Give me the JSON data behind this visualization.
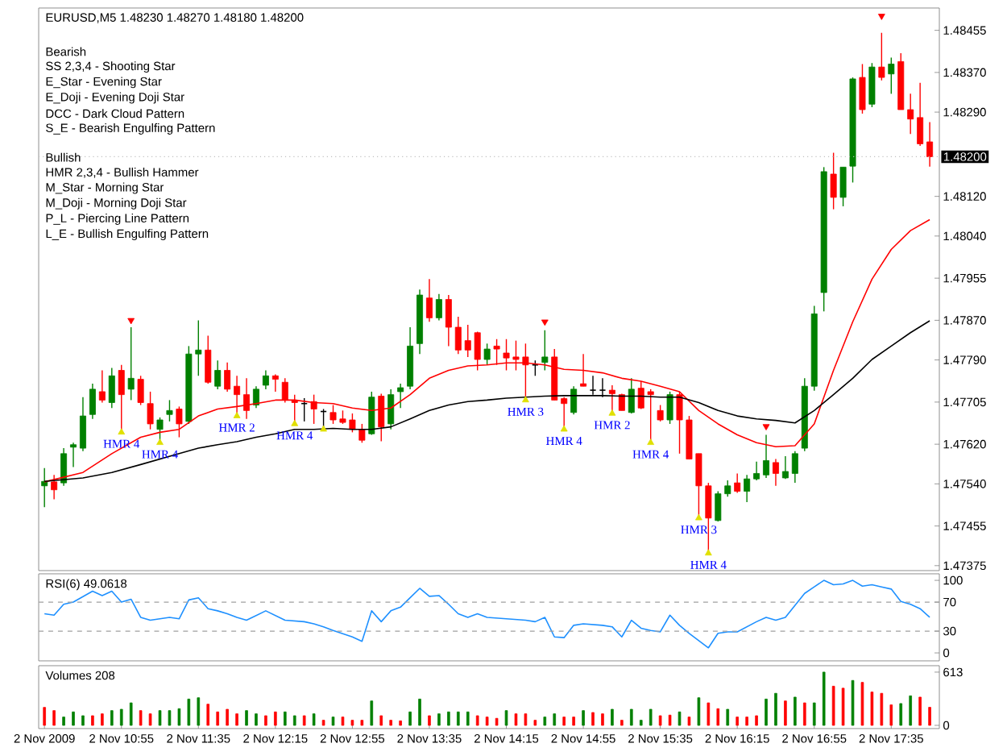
{
  "chart_data": [
    {
      "type": "candlestick",
      "title": "EURUSD,M5 1.48230 1.48270 1.48180 1.48200",
      "tick_labels": "y",
      "xlim": [
        "2009-11-02T10:12",
        "2009-11-02T18:00"
      ],
      "ylim": [
        1.47365,
        1.485
      ],
      "yticks": [
        {
          "value": 1.48455,
          "label": "1.48455"
        },
        {
          "value": 1.4837,
          "label": "1.48370"
        },
        {
          "value": 1.4829,
          "label": "1.48290"
        },
        {
          "value": 1.4812,
          "label": "1.48120"
        },
        {
          "value": 1.4804,
          "label": "1.48040"
        },
        {
          "value": 1.47955,
          "label": "1.47955"
        },
        {
          "value": 1.4787,
          "label": "1.47870"
        },
        {
          "value": 1.4779,
          "label": "1.47790"
        },
        {
          "value": 1.47705,
          "label": "1.47705"
        },
        {
          "value": 1.4762,
          "label": "1.47620"
        },
        {
          "value": 1.4754,
          "label": "1.47540"
        },
        {
          "value": 1.47455,
          "label": "1.47455"
        },
        {
          "value": 1.47375,
          "label": "1.47375"
        }
      ],
      "ref_lines": [
        {
          "axis": "y",
          "value": 1.482,
          "label": "1.48200",
          "color": "#c0c0c0",
          "line_style": "dotted"
        }
      ],
      "annotations": [
        "Bearish",
        "SS 2,3,4 - Shooting Star",
        "E_Star - Evening Star",
        "E_Doji - Evening Doji Star",
        "DCC - Dark Cloud Pattern",
        "S_E - Bearish Engulfing Pattern",
        "Bullish",
        "HMR 2,3,4 - Bullish Hammer",
        "M_Star - Morning Star",
        "M_Doji - Morning Doji Star",
        "P_L - Piercing Line Pattern",
        "L_E - Bullish Engulfing Pattern",
        {
          "text": "HMR 4",
          "x": "2009-11-02T10:55",
          "y": 1.47644
        },
        {
          "text": "HMR 4",
          "x": "2009-11-02T11:15",
          "y": 1.47623
        },
        {
          "text": "HMR 2",
          "x": "2009-11-02T11:55",
          "y": 1.47677
        },
        {
          "text": "HMR 4",
          "x": "2009-11-02T12:25",
          "y": 1.47661
        },
        {
          "text": "HMR 3",
          "x": "2009-11-02T14:25",
          "y": 1.47709
        },
        {
          "text": "HMR 4",
          "x": "2009-11-02T14:45",
          "y": 1.4765
        },
        {
          "text": "HMR 2",
          "x": "2009-11-02T15:10",
          "y": 1.47682
        },
        {
          "text": "HMR 4",
          "x": "2009-11-02T15:30",
          "y": 1.47623
        },
        {
          "text": "HMR 3",
          "x": "2009-11-02T15:55",
          "y": 1.47471
        },
        {
          "text": "HMR 4",
          "x": "2009-11-02T16:00",
          "y": 1.474
        }
      ],
      "x": [
        "2009-11-02T10:15",
        "2009-11-02T10:20",
        "2009-11-02T10:25",
        "2009-11-02T10:30",
        "2009-11-02T10:35",
        "2009-11-02T10:40",
        "2009-11-02T10:45",
        "2009-11-02T10:50",
        "2009-11-02T10:55",
        "2009-11-02T11:00",
        "2009-11-02T11:05",
        "2009-11-02T11:10",
        "2009-11-02T11:15",
        "2009-11-02T11:20",
        "2009-11-02T11:25",
        "2009-11-02T11:30",
        "2009-11-02T11:35",
        "2009-11-02T11:40",
        "2009-11-02T11:45",
        "2009-11-02T11:50",
        "2009-11-02T11:55",
        "2009-11-02T12:00",
        "2009-11-02T12:05",
        "2009-11-02T12:10",
        "2009-11-02T12:15",
        "2009-11-02T12:20",
        "2009-11-02T12:25",
        "2009-11-02T12:30",
        "2009-11-02T12:35",
        "2009-11-02T12:40",
        "2009-11-02T12:45",
        "2009-11-02T12:50",
        "2009-11-02T12:55",
        "2009-11-02T13:00",
        "2009-11-02T13:05",
        "2009-11-02T13:10",
        "2009-11-02T13:15",
        "2009-11-02T13:20",
        "2009-11-02T13:25",
        "2009-11-02T13:30",
        "2009-11-02T13:35",
        "2009-11-02T13:40",
        "2009-11-02T13:45",
        "2009-11-02T13:50",
        "2009-11-02T13:55",
        "2009-11-02T14:00",
        "2009-11-02T14:05",
        "2009-11-02T14:10",
        "2009-11-02T14:15",
        "2009-11-02T14:20",
        "2009-11-02T14:25",
        "2009-11-02T14:30",
        "2009-11-02T14:35",
        "2009-11-02T14:40",
        "2009-11-02T14:45",
        "2009-11-02T14:50",
        "2009-11-02T14:55",
        "2009-11-02T15:00",
        "2009-11-02T15:05",
        "2009-11-02T15:10",
        "2009-11-02T15:15",
        "2009-11-02T15:20",
        "2009-11-02T15:25",
        "2009-11-02T15:30",
        "2009-11-02T15:35",
        "2009-11-02T15:40",
        "2009-11-02T15:45",
        "2009-11-02T15:50",
        "2009-11-02T15:55",
        "2009-11-02T16:00",
        "2009-11-02T16:05",
        "2009-11-02T16:10",
        "2009-11-02T16:15",
        "2009-11-02T16:20",
        "2009-11-02T16:25",
        "2009-11-02T16:30",
        "2009-11-02T16:35",
        "2009-11-02T16:40",
        "2009-11-02T16:45",
        "2009-11-02T16:50",
        "2009-11-02T16:55",
        "2009-11-02T17:00",
        "2009-11-02T17:05",
        "2009-11-02T17:10",
        "2009-11-02T17:15",
        "2009-11-02T17:20",
        "2009-11-02T17:25",
        "2009-11-02T17:30",
        "2009-11-02T17:35",
        "2009-11-02T17:40",
        "2009-11-02T17:45",
        "2009-11-02T17:50",
        "2009-11-02T17:55"
      ],
      "ohlc": [
        [
          1.47536,
          1.47572,
          1.47493,
          1.47545
        ],
        [
          1.47544,
          1.47558,
          1.47509,
          1.47528
        ],
        [
          1.47542,
          1.47612,
          1.47536,
          1.47601
        ],
        [
          1.47614,
          1.47623,
          1.47574,
          1.47619
        ],
        [
          1.47612,
          1.47715,
          1.47606,
          1.47677
        ],
        [
          1.4768,
          1.47742,
          1.47671,
          1.47731
        ],
        [
          1.47726,
          1.47769,
          1.47704,
          1.47709
        ],
        [
          1.47704,
          1.47774,
          1.47693,
          1.47758
        ],
        [
          1.47769,
          1.4778,
          1.47644,
          1.4772
        ],
        [
          1.47731,
          1.47856,
          1.47709,
          1.47753
        ],
        [
          1.47751,
          1.47758,
          1.47699,
          1.47704
        ],
        [
          1.47702,
          1.47726,
          1.4765,
          1.47661
        ],
        [
          1.4765,
          1.47674,
          1.47623,
          1.47669
        ],
        [
          1.4768,
          1.47709,
          1.47666,
          1.47688
        ],
        [
          1.47691,
          1.47696,
          1.47634,
          1.47661
        ],
        [
          1.47666,
          1.47818,
          1.47661,
          1.47802
        ],
        [
          1.47802,
          1.4787,
          1.47758,
          1.4781
        ],
        [
          1.4781,
          1.47839,
          1.47742,
          1.47745
        ],
        [
          1.47737,
          1.47789,
          1.47731,
          1.47769
        ],
        [
          1.47769,
          1.47785,
          1.47726,
          1.47731
        ],
        [
          1.47737,
          1.47758,
          1.47677,
          1.4772
        ],
        [
          1.4772,
          1.47753,
          1.47671,
          1.47688
        ],
        [
          1.47699,
          1.47737,
          1.47693,
          1.47731
        ],
        [
          1.47739,
          1.47769,
          1.47731,
          1.47758
        ],
        [
          1.47758,
          1.47761,
          1.47726,
          1.47751
        ],
        [
          1.47745,
          1.47753,
          1.47704,
          1.47709
        ],
        [
          1.47709,
          1.4772,
          1.47661,
          1.47704
        ],
        [
          1.47702,
          1.47713,
          1.47666,
          1.47702
        ],
        [
          1.47706,
          1.4772,
          1.47661,
          1.47691
        ],
        [
          1.47686,
          1.47691,
          1.4765,
          1.47686
        ],
        [
          1.47684,
          1.47699,
          1.47661,
          1.47669
        ],
        [
          1.47671,
          1.47688,
          1.47661,
          1.47664
        ],
        [
          1.47669,
          1.47682,
          1.47644,
          1.4765
        ],
        [
          1.4765,
          1.47661,
          1.47623,
          1.47628
        ],
        [
          1.47641,
          1.47726,
          1.47639,
          1.47715
        ],
        [
          1.47717,
          1.47722,
          1.47626,
          1.47655
        ],
        [
          1.47661,
          1.47731,
          1.4765,
          1.4772
        ],
        [
          1.47726,
          1.47742,
          1.47693,
          1.47734
        ],
        [
          1.47737,
          1.47856,
          1.47731,
          1.47818
        ],
        [
          1.47823,
          1.47932,
          1.47802,
          1.47921
        ],
        [
          1.47915,
          1.47953,
          1.47867,
          1.47875
        ],
        [
          1.47875,
          1.47923,
          1.4787,
          1.47912
        ],
        [
          1.47912,
          1.47921,
          1.47818,
          1.47856
        ],
        [
          1.47856,
          1.47877,
          1.47802,
          1.4781
        ],
        [
          1.47829,
          1.47861,
          1.47796,
          1.4781
        ],
        [
          1.47845,
          1.47847,
          1.47769,
          1.47791
        ],
        [
          1.47791,
          1.47823,
          1.4778,
          1.47812
        ],
        [
          1.47818,
          1.47832,
          1.4778,
          1.47812
        ],
        [
          1.47804,
          1.47832,
          1.47769,
          1.47794
        ],
        [
          1.47796,
          1.47829,
          1.47769,
          1.47791
        ],
        [
          1.47796,
          1.47823,
          1.47709,
          1.4778
        ],
        [
          1.4778,
          1.47789,
          1.47758,
          1.4778
        ],
        [
          1.47785,
          1.4785,
          1.47769,
          1.47796
        ],
        [
          1.47796,
          1.47812,
          1.47709,
          1.47709
        ],
        [
          1.47712,
          1.47715,
          1.4765,
          1.47702
        ],
        [
          1.47684,
          1.47737,
          1.4768,
          1.47731
        ],
        [
          1.47742,
          1.47802,
          1.47737,
          1.47737
        ],
        [
          1.47729,
          1.47758,
          1.4772,
          1.47729
        ],
        [
          1.47729,
          1.47753,
          1.47715,
          1.47729
        ],
        [
          1.47729,
          1.47739,
          1.47682,
          1.47722
        ],
        [
          1.4772,
          1.47722,
          1.47688,
          1.47688
        ],
        [
          1.47684,
          1.47753,
          1.47682,
          1.47731
        ],
        [
          1.47733,
          1.47747,
          1.47691,
          1.47693
        ],
        [
          1.47726,
          1.47731,
          1.47623,
          1.4772
        ],
        [
          1.47688,
          1.47699,
          1.47666,
          1.47669
        ],
        [
          1.47669,
          1.47726,
          1.47661,
          1.4772
        ],
        [
          1.4772,
          1.47726,
          1.47601,
          1.47669
        ],
        [
          1.47669,
          1.47677,
          1.4759,
          1.4759
        ],
        [
          1.47601,
          1.47601,
          1.47471,
          1.47536
        ],
        [
          1.47536,
          1.47542,
          1.474,
          1.47471
        ],
        [
          1.47466,
          1.47525,
          1.47464,
          1.4752
        ],
        [
          1.4752,
          1.47547,
          1.47514,
          1.47536
        ],
        [
          1.47542,
          1.47561,
          1.47522,
          1.47525
        ],
        [
          1.47525,
          1.47558,
          1.47503,
          1.4755
        ],
        [
          1.4755,
          1.47585,
          1.47547,
          1.47561
        ],
        [
          1.47558,
          1.47639,
          1.47552,
          1.47587
        ],
        [
          1.47583,
          1.4759,
          1.47536,
          1.47561
        ],
        [
          1.47552,
          1.47596,
          1.4755,
          1.47565
        ],
        [
          1.47561,
          1.47606,
          1.47542,
          1.47601
        ],
        [
          1.47612,
          1.47753,
          1.47606,
          1.47737
        ],
        [
          1.47737,
          1.47899,
          1.47728,
          1.47883
        ],
        [
          1.47926,
          1.48179,
          1.47888,
          1.4817
        ],
        [
          1.48165,
          1.48208,
          1.48094,
          1.48118
        ],
        [
          1.48118,
          1.48179,
          1.481,
          1.48179
        ],
        [
          1.48181,
          1.4836,
          1.48148,
          1.48357
        ],
        [
          1.4836,
          1.48387,
          1.48287,
          1.48295
        ],
        [
          1.48306,
          1.48389,
          1.483,
          1.48381
        ],
        [
          1.48381,
          1.4845,
          1.48354,
          1.4836
        ],
        [
          1.48367,
          1.484,
          1.48327,
          1.48387
        ],
        [
          1.48392,
          1.48409,
          1.48295,
          1.48295
        ],
        [
          1.48295,
          1.48327,
          1.48246,
          1.48276
        ],
        [
          1.48279,
          1.48349,
          1.48222,
          1.48226
        ],
        [
          1.4823,
          1.4827,
          1.4818,
          1.482
        ]
      ],
      "colors": [
        "#008000",
        "#ff0000",
        "#008000",
        "#008000",
        "#008000",
        "#008000",
        "#ff0000",
        "#008000",
        "#ff0000",
        "#008000",
        "#ff0000",
        "#ff0000",
        "#008000",
        "#008000",
        "#ff0000",
        "#008000",
        "#008000",
        "#ff0000",
        "#008000",
        "#ff0000",
        "#ff0000",
        "#ff0000",
        "#008000",
        "#008000",
        "#ff0000",
        "#ff0000",
        "#ff0000",
        "#000000",
        "#ff0000",
        "#000000",
        "#ff0000",
        "#ff0000",
        "#ff0000",
        "#ff0000",
        "#008000",
        "#ff0000",
        "#008000",
        "#008000",
        "#008000",
        "#008000",
        "#ff0000",
        "#008000",
        "#ff0000",
        "#ff0000",
        "#ff0000",
        "#ff0000",
        "#008000",
        "#ff0000",
        "#ff0000",
        "#ff0000",
        "#ff0000",
        "#000000",
        "#008000",
        "#ff0000",
        "#ff0000",
        "#008000",
        "#ff0000",
        "#000000",
        "#000000",
        "#ff0000",
        "#ff0000",
        "#008000",
        "#ff0000",
        "#ff0000",
        "#ff0000",
        "#008000",
        "#ff0000",
        "#ff0000",
        "#ff0000",
        "#ff0000",
        "#008000",
        "#008000",
        "#ff0000",
        "#008000",
        "#008000",
        "#008000",
        "#ff0000",
        "#008000",
        "#008000",
        "#008000",
        "#008000",
        "#008000",
        "#ff0000",
        "#008000",
        "#008000",
        "#ff0000",
        "#008000",
        "#ff0000",
        "#008000",
        "#ff0000",
        "#ff0000",
        "#ff0000",
        "#ff0000"
      ],
      "series": [
        {
          "type": "line",
          "color": "#ff0000",
          "x": [
            "2009-11-02T10:15",
            "2009-11-02T10:35",
            "2009-11-02T10:50",
            "2009-11-02T11:05",
            "2009-11-02T11:15",
            "2009-11-02T11:25",
            "2009-11-02T11:35",
            "2009-11-02T11:45",
            "2009-11-02T11:55",
            "2009-11-02T12:05",
            "2009-11-02T12:15",
            "2009-11-02T12:25",
            "2009-11-02T12:35",
            "2009-11-02T12:45",
            "2009-11-02T12:55",
            "2009-11-02T13:05",
            "2009-11-02T13:15",
            "2009-11-02T13:25",
            "2009-11-02T13:35",
            "2009-11-02T13:45",
            "2009-11-02T13:55",
            "2009-11-02T14:05",
            "2009-11-02T14:15",
            "2009-11-02T14:25",
            "2009-11-02T14:35",
            "2009-11-02T14:45",
            "2009-11-02T14:55",
            "2009-11-02T15:05",
            "2009-11-02T15:15",
            "2009-11-02T15:25",
            "2009-11-02T15:35",
            "2009-11-02T15:45",
            "2009-11-02T15:55",
            "2009-11-02T16:05",
            "2009-11-02T16:15",
            "2009-11-02T16:25",
            "2009-11-02T16:35",
            "2009-11-02T16:45",
            "2009-11-02T16:55",
            "2009-11-02T17:05",
            "2009-11-02T17:15",
            "2009-11-02T17:25",
            "2009-11-02T17:35",
            "2009-11-02T17:45",
            "2009-11-02T17:55"
          ],
          "values": [
            1.47544,
            1.47563,
            1.47601,
            1.47634,
            1.47644,
            1.4765,
            1.47677,
            1.47691,
            1.47696,
            1.47702,
            1.47709,
            1.47709,
            1.47704,
            1.47702,
            1.47693,
            1.47688,
            1.47693,
            1.4772,
            1.47753,
            1.47769,
            1.47778,
            1.4778,
            1.47784,
            1.47784,
            1.4778,
            1.47771,
            1.47769,
            1.47764,
            1.47753,
            1.47747,
            1.47737,
            1.47726,
            1.47688,
            1.47661,
            1.47639,
            1.47623,
            1.47615,
            1.47617,
            1.47661,
            1.47769,
            1.47867,
            1.47953,
            1.48013,
            1.48051,
            1.48073
          ]
        },
        {
          "type": "line",
          "color": "#000000",
          "x": [
            "2009-11-02T10:15",
            "2009-11-02T10:35",
            "2009-11-02T10:50",
            "2009-11-02T11:05",
            "2009-11-02T11:15",
            "2009-11-02T11:25",
            "2009-11-02T11:35",
            "2009-11-02T11:45",
            "2009-11-02T11:55",
            "2009-11-02T12:05",
            "2009-11-02T12:15",
            "2009-11-02T12:25",
            "2009-11-02T12:35",
            "2009-11-02T12:45",
            "2009-11-02T12:55",
            "2009-11-02T13:05",
            "2009-11-02T13:15",
            "2009-11-02T13:25",
            "2009-11-02T13:35",
            "2009-11-02T13:45",
            "2009-11-02T13:55",
            "2009-11-02T14:05",
            "2009-11-02T14:15",
            "2009-11-02T14:25",
            "2009-11-02T14:35",
            "2009-11-02T14:45",
            "2009-11-02T14:55",
            "2009-11-02T15:05",
            "2009-11-02T15:15",
            "2009-11-02T15:25",
            "2009-11-02T15:35",
            "2009-11-02T15:45",
            "2009-11-02T15:55",
            "2009-11-02T16:05",
            "2009-11-02T16:15",
            "2009-11-02T16:25",
            "2009-11-02T16:35",
            "2009-11-02T16:45",
            "2009-11-02T16:55",
            "2009-11-02T17:05",
            "2009-11-02T17:15",
            "2009-11-02T17:25",
            "2009-11-02T17:35",
            "2009-11-02T17:45",
            "2009-11-02T17:55"
          ],
          "values": [
            1.47545,
            1.47552,
            1.47563,
            1.47579,
            1.4759,
            1.47601,
            1.47612,
            1.47619,
            1.47625,
            1.47634,
            1.47641,
            1.4765,
            1.4765,
            1.47652,
            1.4765,
            1.4765,
            1.47655,
            1.47671,
            1.47688,
            1.47699,
            1.47706,
            1.47709,
            1.47713,
            1.47715,
            1.47717,
            1.47718,
            1.47718,
            1.47718,
            1.47717,
            1.47717,
            1.47715,
            1.47715,
            1.47704,
            1.47688,
            1.47677,
            1.47671,
            1.47668,
            1.47663,
            1.47688,
            1.4772,
            1.47753,
            1.47791,
            1.47818,
            1.47845,
            1.47869
          ]
        },
        {
          "type": "scatter",
          "color": "#ff0000",
          "marker": "triangle",
          "x": [
            "2009-11-02T11:00",
            "2009-11-02T14:35",
            "2009-11-02T16:30",
            "2009-11-02T17:30"
          ],
          "values": [
            1.4787,
            1.47867,
            1.47656,
            1.48484
          ]
        },
        {
          "type": "scatter",
          "color": "#e0e000",
          "marker": "triangle",
          "x": [
            "2009-11-02T10:55",
            "2009-11-02T11:15",
            "2009-11-02T11:55",
            "2009-11-02T12:25",
            "2009-11-02T12:40",
            "2009-11-02T14:25",
            "2009-11-02T14:45",
            "2009-11-02T15:10",
            "2009-11-02T15:30",
            "2009-11-02T15:55",
            "2009-11-02T16:00"
          ],
          "values": [
            1.47644,
            1.47623,
            1.47677,
            1.47661,
            1.4765,
            1.47709,
            1.4765,
            1.47682,
            1.47623,
            1.47471,
            1.474
          ]
        }
      ]
    },
    {
      "type": "line",
      "title": "RSI(6) 49.0618",
      "tick_labels": "y",
      "xlim": [
        "2009-11-02T10:12",
        "2009-11-02T18:00"
      ],
      "ylim": [
        -11,
        109
      ],
      "yticks": [
        0,
        30,
        70,
        100
      ],
      "ref_lines": [
        {
          "axis": "y",
          "value": 30,
          "color": "#a0a0a0",
          "line_style": "dashed"
        },
        {
          "axis": "y",
          "value": 70,
          "color": "#a0a0a0",
          "line_style": "dashed"
        }
      ],
      "series": [
        {
          "color": "#1e90ff",
          "x": [
            "2009-11-02T10:15",
            "2009-11-02T10:20",
            "2009-11-02T10:25",
            "2009-11-02T10:30",
            "2009-11-02T10:40",
            "2009-11-02T10:45",
            "2009-11-02T10:50",
            "2009-11-02T10:55",
            "2009-11-02T11:00",
            "2009-11-02T11:05",
            "2009-11-02T11:10",
            "2009-11-02T11:20",
            "2009-11-02T11:25",
            "2009-11-02T11:30",
            "2009-11-02T11:35",
            "2009-11-02T11:40",
            "2009-11-02T11:45",
            "2009-11-02T11:50",
            "2009-11-02T11:55",
            "2009-11-02T12:00",
            "2009-11-02T12:10",
            "2009-11-02T12:20",
            "2009-11-02T12:30",
            "2009-11-02T12:35",
            "2009-11-02T12:40",
            "2009-11-02T12:45",
            "2009-11-02T12:55",
            "2009-11-02T13:00",
            "2009-11-02T13:05",
            "2009-11-02T13:10",
            "2009-11-02T13:15",
            "2009-11-02T13:20",
            "2009-11-02T13:25",
            "2009-11-02T13:30",
            "2009-11-02T13:35",
            "2009-11-02T13:40",
            "2009-11-02T13:45",
            "2009-11-02T13:50",
            "2009-11-02T13:55",
            "2009-11-02T14:00",
            "2009-11-02T14:05",
            "2009-11-02T14:15",
            "2009-11-02T14:25",
            "2009-11-02T14:30",
            "2009-11-02T14:35",
            "2009-11-02T14:40",
            "2009-11-02T14:45",
            "2009-11-02T14:50",
            "2009-11-02T14:55",
            "2009-11-02T15:05",
            "2009-11-02T15:10",
            "2009-11-02T15:15",
            "2009-11-02T15:20",
            "2009-11-02T15:25",
            "2009-11-02T15:30",
            "2009-11-02T15:35",
            "2009-11-02T15:40",
            "2009-11-02T15:45",
            "2009-11-02T15:50",
            "2009-11-02T16:00",
            "2009-11-02T16:05",
            "2009-11-02T16:10",
            "2009-11-02T16:15",
            "2009-11-02T16:25",
            "2009-11-02T16:30",
            "2009-11-02T16:35",
            "2009-11-02T16:40",
            "2009-11-02T16:50",
            "2009-11-02T16:55",
            "2009-11-02T17:00",
            "2009-11-02T17:05",
            "2009-11-02T17:10",
            "2009-11-02T17:15",
            "2009-11-02T17:20",
            "2009-11-02T17:25",
            "2009-11-02T17:30",
            "2009-11-02T17:35",
            "2009-11-02T17:40",
            "2009-11-02T17:45",
            "2009-11-02T17:50",
            "2009-11-02T17:55"
          ],
          "values": [
            54,
            52,
            67,
            70,
            85,
            79,
            85,
            70,
            74,
            49,
            45,
            49,
            47,
            73,
            76,
            61,
            58,
            54,
            49,
            45,
            58,
            45,
            43,
            40,
            36,
            31,
            22,
            16,
            58,
            43,
            58,
            63,
            76,
            89,
            78,
            79,
            67,
            54,
            49,
            54,
            49,
            47,
            45,
            43,
            49,
            22,
            21,
            38,
            40,
            38,
            36,
            22,
            45,
            34,
            31,
            29,
            52,
            38,
            27,
            7,
            27,
            29,
            29,
            43,
            49,
            45,
            49,
            82,
            91,
            100,
            94,
            95,
            100,
            92,
            94,
            91,
            88,
            71,
            67,
            61,
            49
          ]
        }
      ]
    },
    {
      "type": "bar",
      "title": "Volumes 208",
      "xlim": [
        "2009-11-02T10:12",
        "2009-11-02T18:00"
      ],
      "ylim": [
        -37,
        687
      ],
      "yticks": [
        0,
        613
      ],
      "xticks": [
        {
          "value": "2009-11-02T10:15",
          "label": "2 Nov 2009"
        },
        {
          "value": "2009-11-02T10:55",
          "label": "2 Nov 10:55"
        },
        {
          "value": "2009-11-02T11:35",
          "label": "2 Nov 11:35"
        },
        {
          "value": "2009-11-02T12:15",
          "label": "2 Nov 12:15"
        },
        {
          "value": "2009-11-02T12:55",
          "label": "2 Nov 12:55"
        },
        {
          "value": "2009-11-02T13:35",
          "label": "2 Nov 13:35"
        },
        {
          "value": "2009-11-02T14:15",
          "label": "2 Nov 14:15"
        },
        {
          "value": "2009-11-02T14:55",
          "label": "2 Nov 14:55"
        },
        {
          "value": "2009-11-02T15:35",
          "label": "2 Nov 15:35"
        },
        {
          "value": "2009-11-02T16:15",
          "label": "2 Nov 16:15"
        },
        {
          "value": "2009-11-02T16:55",
          "label": "2 Nov 16:55"
        },
        {
          "value": "2009-11-02T17:35",
          "label": "2 Nov 17:35"
        }
      ],
      "x": [
        "2009-11-02T10:15",
        "2009-11-02T10:20",
        "2009-11-02T10:25",
        "2009-11-02T10:30",
        "2009-11-02T10:35",
        "2009-11-02T10:40",
        "2009-11-02T10:45",
        "2009-11-02T10:50",
        "2009-11-02T10:55",
        "2009-11-02T11:00",
        "2009-11-02T11:05",
        "2009-11-02T11:10",
        "2009-11-02T11:15",
        "2009-11-02T11:20",
        "2009-11-02T11:25",
        "2009-11-02T11:30",
        "2009-11-02T11:35",
        "2009-11-02T11:40",
        "2009-11-02T11:45",
        "2009-11-02T11:50",
        "2009-11-02T11:55",
        "2009-11-02T12:00",
        "2009-11-02T12:05",
        "2009-11-02T12:10",
        "2009-11-02T12:15",
        "2009-11-02T12:20",
        "2009-11-02T12:25",
        "2009-11-02T12:30",
        "2009-11-02T12:35",
        "2009-11-02T12:40",
        "2009-11-02T12:45",
        "2009-11-02T12:50",
        "2009-11-02T12:55",
        "2009-11-02T13:00",
        "2009-11-02T13:05",
        "2009-11-02T13:10",
        "2009-11-02T13:15",
        "2009-11-02T13:20",
        "2009-11-02T13:25",
        "2009-11-02T13:30",
        "2009-11-02T13:35",
        "2009-11-02T13:40",
        "2009-11-02T13:45",
        "2009-11-02T13:50",
        "2009-11-02T13:55",
        "2009-11-02T14:00",
        "2009-11-02T14:05",
        "2009-11-02T14:10",
        "2009-11-02T14:15",
        "2009-11-02T14:20",
        "2009-11-02T14:25",
        "2009-11-02T14:30",
        "2009-11-02T14:35",
        "2009-11-02T14:40",
        "2009-11-02T14:45",
        "2009-11-02T14:50",
        "2009-11-02T14:55",
        "2009-11-02T15:00",
        "2009-11-02T15:05",
        "2009-11-02T15:10",
        "2009-11-02T15:15",
        "2009-11-02T15:20",
        "2009-11-02T15:25",
        "2009-11-02T15:30",
        "2009-11-02T15:35",
        "2009-11-02T15:40",
        "2009-11-02T15:45",
        "2009-11-02T15:50",
        "2009-11-02T15:55",
        "2009-11-02T16:00",
        "2009-11-02T16:05",
        "2009-11-02T16:10",
        "2009-11-02T16:15",
        "2009-11-02T16:20",
        "2009-11-02T16:25",
        "2009-11-02T16:30",
        "2009-11-02T16:35",
        "2009-11-02T16:40",
        "2009-11-02T16:45",
        "2009-11-02T16:50",
        "2009-11-02T16:55",
        "2009-11-02T17:00",
        "2009-11-02T17:05",
        "2009-11-02T17:10",
        "2009-11-02T17:15",
        "2009-11-02T17:20",
        "2009-11-02T17:25",
        "2009-11-02T17:30",
        "2009-11-02T17:35",
        "2009-11-02T17:40",
        "2009-11-02T17:45",
        "2009-11-02T17:50",
        "2009-11-02T17:55"
      ],
      "values": [
        207,
        170,
        96,
        155,
        111,
        111,
        133,
        170,
        185,
        259,
        170,
        133,
        170,
        170,
        192,
        303,
        318,
        244,
        155,
        185,
        133,
        170,
        133,
        111,
        155,
        155,
        111,
        111,
        133,
        59,
        96,
        96,
        59,
        59,
        281,
        111,
        59,
        52,
        155,
        303,
        111,
        133,
        155,
        155,
        155,
        111,
        96,
        81,
        170,
        133,
        133,
        59,
        96,
        133,
        96,
        96,
        170,
        148,
        133,
        185,
        59,
        185,
        59,
        185,
        111,
        118,
        155,
        96,
        318,
        259,
        192,
        185,
        96,
        96,
        111,
        303,
        369,
        281,
        325,
        259,
        259,
        613,
        451,
        428,
        517,
        495,
        384,
        369,
        236,
        251,
        340,
        325,
        208
      ],
      "colors": [
        "#ff0000",
        "#ff0000",
        "#008000",
        "#008000",
        "#008000",
        "#ff0000",
        "#ff0000",
        "#008000",
        "#008000",
        "#008000",
        "#ff0000",
        "#ff0000",
        "#008000",
        "#008000",
        "#008000",
        "#008000",
        "#008000",
        "#ff0000",
        "#ff0000",
        "#ff0000",
        "#ff0000",
        "#008000",
        "#008000",
        "#ff0000",
        "#ff0000",
        "#008000",
        "#008000",
        "#ff0000",
        "#008000",
        "#ff0000",
        "#008000",
        "#ff0000",
        "#ff0000",
        "#ff0000",
        "#008000",
        "#ff0000",
        "#ff0000",
        "#ff0000",
        "#008000",
        "#008000",
        "#ff0000",
        "#008000",
        "#008000",
        "#008000",
        "#008000",
        "#ff0000",
        "#ff0000",
        "#ff0000",
        "#008000",
        "#ff0000",
        "#ff0000",
        "#ff0000",
        "#008000",
        "#008000",
        "#ff0000",
        "#ff0000",
        "#008000",
        "#ff0000",
        "#ff0000",
        "#008000",
        "#ff0000",
        "#008000",
        "#008000",
        "#008000",
        "#ff0000",
        "#ff0000",
        "#008000",
        "#ff0000",
        "#008000",
        "#ff0000",
        "#ff0000",
        "#008000",
        "#ff0000",
        "#ff0000",
        "#ff0000",
        "#008000",
        "#008000",
        "#ff0000",
        "#008000",
        "#ff0000",
        "#008000",
        "#008000",
        "#ff0000",
        "#ff0000",
        "#008000",
        "#ff0000",
        "#ff0000",
        "#ff0000",
        "#ff0000",
        "#008000",
        "#008000",
        "#ff0000",
        "#ff0000"
      ]
    }
  ]
}
